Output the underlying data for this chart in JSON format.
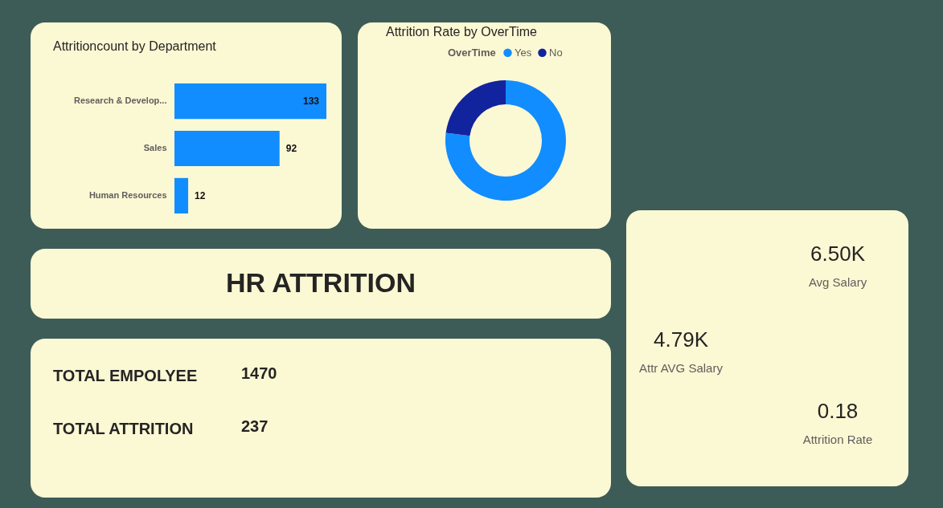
{
  "chart_data": [
    {
      "type": "bar",
      "orientation": "horizontal",
      "title": "Attritioncount by Department",
      "categories": [
        "Research & Develop...",
        "Sales",
        "Human Resources"
      ],
      "values": [
        133,
        92,
        12
      ],
      "color": "#118dff",
      "data_labels": true
    },
    {
      "type": "donut",
      "title": "Attrition Rate by OverTime",
      "legend_title": "OverTime",
      "legend": "top",
      "categories": [
        "Yes",
        "No"
      ],
      "values": [
        77,
        23
      ],
      "colors": [
        "#118dff",
        "#12239e"
      ]
    },
    {
      "type": "other",
      "title": "HR ATTRITION"
    },
    {
      "type": "other",
      "categories": [
        "TOTAL EMPOLYEE",
        "TOTAL ATTRITION"
      ],
      "values": [
        1470,
        237
      ],
      "data_labels": true
    },
    {
      "type": "other",
      "annotations": [
        "6.50K",
        "Avg Salary",
        "4.79K",
        "Attr AVG Salary",
        "0.18",
        "Attrition Rate"
      ]
    }
  ]
}
